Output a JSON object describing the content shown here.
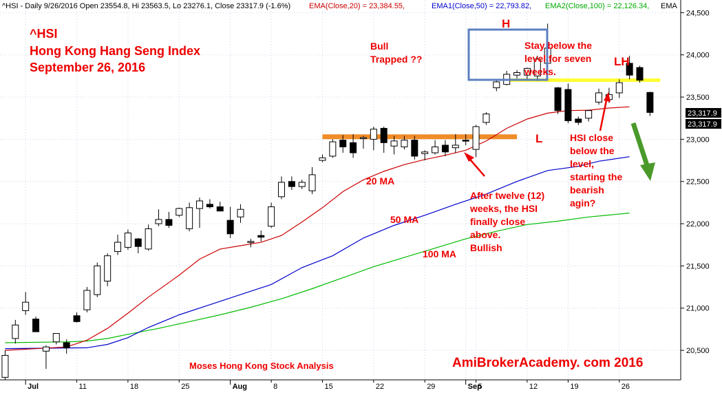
{
  "header": {
    "symbol_info": "^HSI - Daily 9/26/2016 Open 23554.8, Hi 23563.5, Lo 23276.1, Close 23317.9 (-1.6%)",
    "ema20_label": "EMA(Close,20) = 23,384.55,",
    "ema50_label": "EMA1(Close,50) = 22,793.82,",
    "ema100_label": "EMA2(Close,100) = 22,126.34,",
    "ema_more": "EMA"
  },
  "title": {
    "line1": "^HSI",
    "line2": "Hong Kong Hang Seng Index",
    "line3": "September 26, 2016"
  },
  "annotations": {
    "bull_trapped_1": "Bull",
    "bull_trapped_2": "Trapped ??",
    "h": "H",
    "lh": "LH",
    "l": "L",
    "stay_1": "Stay below the",
    "stay_2": "level for seven",
    "stay_3": "weeks.",
    "hsi_close_1": "HSI close",
    "hsi_close_2": "below the",
    "hsi_close_3": "level,",
    "hsi_close_4": "starting the",
    "hsi_close_5": "bearish",
    "hsi_close_6": "agin?",
    "after_1": "After twelve (12)",
    "after_2": "weeks, the HSI",
    "after_3": "finally close",
    "after_4": "above.",
    "after_5": "Bullish",
    "ma20": "20 MA",
    "ma50": "50 MA",
    "ma100": "100 MA",
    "credit": "Moses Hong Kong Stock Analysis",
    "watermark": "AmiBrokerAcademy. com  2016"
  },
  "price_tags": [
    "23,317.9",
    "23,317.9"
  ],
  "colors": {
    "up_body": "#ffffff",
    "down_body": "#000000",
    "ema20": "#cc0000",
    "ema50": "#0000cc",
    "ema100": "#00bb00",
    "resistance_orange": "#f08c28",
    "resistance_yellow": "#ffff33",
    "box_blue": "#5b7fc0",
    "annotation_red": "#ee0000",
    "arrow_green": "#4a9a2a",
    "grid": "#c8d4e6"
  },
  "chart_data": {
    "type": "candlestick",
    "ylim": [
      20150,
      24650
    ],
    "yticks": [
      20500,
      21000,
      21500,
      22000,
      22500,
      23000,
      23500,
      24000,
      24500
    ],
    "ytick_labels": [
      "20,500",
      "21,000",
      "21,500",
      "22,000",
      "22,500",
      "23,000",
      "23,500",
      "24,000",
      "24,500"
    ],
    "xlim": [
      -0.5,
      66
    ],
    "xticks": [
      {
        "i": 2,
        "label": "Jul",
        "major": true
      },
      {
        "i": 7,
        "label": "11",
        "major": false
      },
      {
        "i": 12,
        "label": "18",
        "major": false
      },
      {
        "i": 17,
        "label": "25",
        "major": false
      },
      {
        "i": 22,
        "label": "Aug",
        "major": true
      },
      {
        "i": 26,
        "label": "8",
        "major": false
      },
      {
        "i": 31,
        "label": "15",
        "major": false
      },
      {
        "i": 36,
        "label": "22",
        "major": false
      },
      {
        "i": 41,
        "label": "29",
        "major": false
      },
      {
        "i": 45,
        "label": "Sep",
        "major": true
      },
      {
        "i": 46,
        "label": "5",
        "major": false
      },
      {
        "i": 51,
        "label": "12",
        "major": false
      },
      {
        "i": 55,
        "label": "19",
        "major": false
      },
      {
        "i": 60,
        "label": "26",
        "major": false
      }
    ],
    "candles": [
      {
        "o": 20180,
        "h": 20500,
        "l": 20150,
        "c": 20440
      },
      {
        "o": 20640,
        "h": 20860,
        "l": 20580,
        "c": 20800
      },
      {
        "o": 20970,
        "h": 21190,
        "l": 20920,
        "c": 21070
      },
      {
        "o": 20870,
        "h": 20900,
        "l": 20720,
        "c": 20720
      },
      {
        "o": 20490,
        "h": 20560,
        "l": 20280,
        "c": 20540
      },
      {
        "o": 20600,
        "h": 20700,
        "l": 20570,
        "c": 20700
      },
      {
        "o": 20590,
        "h": 20630,
        "l": 20460,
        "c": 20530
      },
      {
        "o": 20910,
        "h": 20950,
        "l": 20830,
        "c": 20840
      },
      {
        "o": 20980,
        "h": 21250,
        "l": 20950,
        "c": 21210
      },
      {
        "o": 21160,
        "h": 21540,
        "l": 21130,
        "c": 21500
      },
      {
        "o": 21320,
        "h": 21650,
        "l": 21260,
        "c": 21620
      },
      {
        "o": 21670,
        "h": 21870,
        "l": 21630,
        "c": 21780
      },
      {
        "o": 21720,
        "h": 21930,
        "l": 21690,
        "c": 21890
      },
      {
        "o": 21820,
        "h": 21830,
        "l": 21650,
        "c": 21730
      },
      {
        "o": 21700,
        "h": 21990,
        "l": 21680,
        "c": 21940
      },
      {
        "o": 22000,
        "h": 22170,
        "l": 21970,
        "c": 22050
      },
      {
        "o": 22050,
        "h": 22140,
        "l": 21950,
        "c": 21980
      },
      {
        "o": 22100,
        "h": 22190,
        "l": 22080,
        "c": 22180
      },
      {
        "o": 21940,
        "h": 22250,
        "l": 21910,
        "c": 22190
      },
      {
        "o": 22180,
        "h": 22310,
        "l": 21950,
        "c": 22270
      },
      {
        "o": 22230,
        "h": 22290,
        "l": 22180,
        "c": 22200
      },
      {
        "o": 22200,
        "h": 22260,
        "l": 22150,
        "c": 22150
      },
      {
        "o": 22040,
        "h": 22200,
        "l": 21830,
        "c": 21880
      },
      {
        "o": 22080,
        "h": 22230,
        "l": 22010,
        "c": 22170
      },
      {
        "o": 21780,
        "h": 21820,
        "l": 21720,
        "c": 21790
      },
      {
        "o": 21860,
        "h": 21920,
        "l": 21790,
        "c": 21840
      },
      {
        "o": 21970,
        "h": 22250,
        "l": 21950,
        "c": 22200
      },
      {
        "o": 22320,
        "h": 22560,
        "l": 22290,
        "c": 22490
      },
      {
        "o": 22500,
        "h": 22560,
        "l": 22400,
        "c": 22440
      },
      {
        "o": 22440,
        "h": 22520,
        "l": 22410,
        "c": 22490
      },
      {
        "o": 22390,
        "h": 22670,
        "l": 22350,
        "c": 22580
      },
      {
        "o": 22750,
        "h": 22820,
        "l": 22730,
        "c": 22780
      },
      {
        "o": 22800,
        "h": 23000,
        "l": 22780,
        "c": 22970
      },
      {
        "o": 22990,
        "h": 23050,
        "l": 22840,
        "c": 22910
      },
      {
        "o": 22960,
        "h": 23060,
        "l": 22780,
        "c": 22840
      },
      {
        "o": 23010,
        "h": 23040,
        "l": 22890,
        "c": 23020
      },
      {
        "o": 23000,
        "h": 23150,
        "l": 22870,
        "c": 23120
      },
      {
        "o": 23130,
        "h": 23150,
        "l": 22840,
        "c": 22960
      },
      {
        "o": 22920,
        "h": 23040,
        "l": 22820,
        "c": 22980
      },
      {
        "o": 22910,
        "h": 23040,
        "l": 22880,
        "c": 22990
      },
      {
        "o": 22990,
        "h": 23040,
        "l": 22760,
        "c": 22800
      },
      {
        "o": 22830,
        "h": 22870,
        "l": 22750,
        "c": 22850
      },
      {
        "o": 22840,
        "h": 22990,
        "l": 22820,
        "c": 22910
      },
      {
        "o": 22930,
        "h": 22990,
        "l": 22800,
        "c": 22850
      },
      {
        "o": 22900,
        "h": 23060,
        "l": 22840,
        "c": 22930
      },
      {
        "o": 22990,
        "h": 23060,
        "l": 22930,
        "c": 22980
      },
      {
        "o": 22880,
        "h": 23170,
        "l": 22790,
        "c": 23150
      },
      {
        "o": 23200,
        "h": 23320,
        "l": 23170,
        "c": 23300
      },
      {
        "o": 23610,
        "h": 23700,
        "l": 23570,
        "c": 23680
      },
      {
        "o": 23650,
        "h": 23810,
        "l": 23640,
        "c": 23770
      },
      {
        "o": 23760,
        "h": 23820,
        "l": 23720,
        "c": 23790
      },
      {
        "o": 23760,
        "h": 23850,
        "l": 23700,
        "c": 23840
      },
      {
        "o": 23750,
        "h": 23990,
        "l": 23690,
        "c": 23950
      },
      {
        "o": 23900,
        "h": 24370,
        "l": 23880,
        "c": 24080
      },
      {
        "o": 23610,
        "h": 23620,
        "l": 23300,
        "c": 23340
      },
      {
        "o": 23590,
        "h": 23660,
        "l": 23190,
        "c": 23220
      },
      {
        "o": 23240,
        "h": 23270,
        "l": 23170,
        "c": 23200
      },
      {
        "o": 23250,
        "h": 23350,
        "l": 23210,
        "c": 23340
      },
      {
        "o": 23440,
        "h": 23600,
        "l": 23410,
        "c": 23550
      },
      {
        "o": 23470,
        "h": 23610,
        "l": 23430,
        "c": 23530
      },
      {
        "o": 23550,
        "h": 23710,
        "l": 23490,
        "c": 23670
      },
      {
        "o": 23900,
        "h": 23990,
        "l": 23710,
        "c": 23760
      },
      {
        "o": 23850,
        "h": 23870,
        "l": 23670,
        "c": 23700
      },
      {
        "o": 23554.8,
        "h": 23563.5,
        "l": 23276.1,
        "c": 23317.9
      }
    ],
    "ema20": [
      [
        0,
        20500
      ],
      [
        6,
        20540
      ],
      [
        8,
        20620
      ],
      [
        10,
        20760
      ],
      [
        12,
        20940
      ],
      [
        14,
        21130
      ],
      [
        17,
        21390
      ],
      [
        19,
        21580
      ],
      [
        21,
        21700
      ],
      [
        23,
        21740
      ],
      [
        25,
        21780
      ],
      [
        27,
        21860
      ],
      [
        29,
        22020
      ],
      [
        31,
        22190
      ],
      [
        33,
        22380
      ],
      [
        35,
        22520
      ],
      [
        37,
        22620
      ],
      [
        39,
        22700
      ],
      [
        41,
        22760
      ],
      [
        43,
        22810
      ],
      [
        45,
        22870
      ],
      [
        47,
        22980
      ],
      [
        49,
        23130
      ],
      [
        51,
        23240
      ],
      [
        53,
        23310
      ],
      [
        55,
        23340
      ],
      [
        57,
        23345
      ],
      [
        59,
        23370
      ],
      [
        61,
        23385
      ]
    ],
    "ema50": [
      [
        0,
        20520
      ],
      [
        8,
        20530
      ],
      [
        10,
        20570
      ],
      [
        12,
        20650
      ],
      [
        14,
        20770
      ],
      [
        17,
        20920
      ],
      [
        20,
        21040
      ],
      [
        23,
        21160
      ],
      [
        26,
        21280
      ],
      [
        29,
        21480
      ],
      [
        32,
        21620
      ],
      [
        35,
        21830
      ],
      [
        38,
        21980
      ],
      [
        41,
        22100
      ],
      [
        44,
        22230
      ],
      [
        47,
        22350
      ],
      [
        50,
        22500
      ],
      [
        53,
        22630
      ],
      [
        56,
        22680
      ],
      [
        58,
        22740
      ],
      [
        61,
        22794
      ]
    ],
    "ema100": [
      [
        0,
        20590
      ],
      [
        6,
        20600
      ],
      [
        8,
        20610
      ],
      [
        10,
        20640
      ],
      [
        12,
        20690
      ],
      [
        15,
        20760
      ],
      [
        18,
        20840
      ],
      [
        21,
        20920
      ],
      [
        24,
        21010
      ],
      [
        27,
        21110
      ],
      [
        30,
        21230
      ],
      [
        33,
        21360
      ],
      [
        36,
        21490
      ],
      [
        39,
        21600
      ],
      [
        42,
        21710
      ],
      [
        45,
        21820
      ],
      [
        48,
        21910
      ],
      [
        51,
        21990
      ],
      [
        54,
        22030
      ],
      [
        57,
        22080
      ],
      [
        61,
        22126
      ]
    ],
    "resistance_orange": {
      "x0": 31,
      "x1": 50,
      "y": 23030
    },
    "resistance_yellow": {
      "x0": 49,
      "x1": 64,
      "y": 23700
    }
  }
}
